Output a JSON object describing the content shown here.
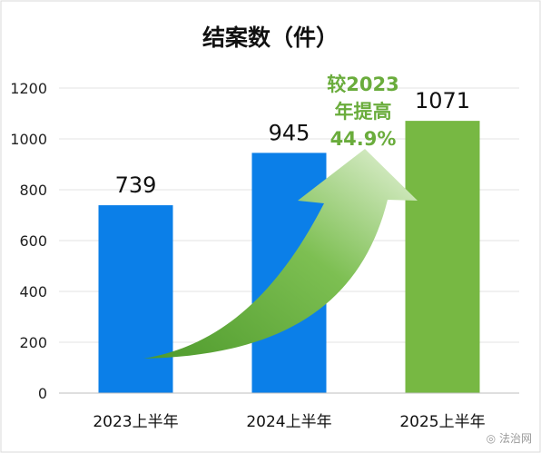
{
  "watermark": "法治网",
  "chart_data": {
    "type": "bar",
    "title": "结案数（件）",
    "categories": [
      "2023上半年",
      "2024上半年",
      "2025上半年"
    ],
    "values": [
      739,
      945,
      1071
    ],
    "data_labels": [
      "739",
      "945",
      "1071"
    ],
    "ylim": [
      0,
      1200
    ],
    "yticks": [
      0,
      200,
      400,
      600,
      800,
      1000,
      1200
    ],
    "grid": true,
    "colors": [
      "#0b7fe8",
      "#0b7fe8",
      "#77b843"
    ],
    "arrow_color": "#6aac3c",
    "annotation": {
      "lines": [
        "较2023",
        "年提高",
        "44.9%"
      ],
      "color": "#6aac3c"
    }
  }
}
